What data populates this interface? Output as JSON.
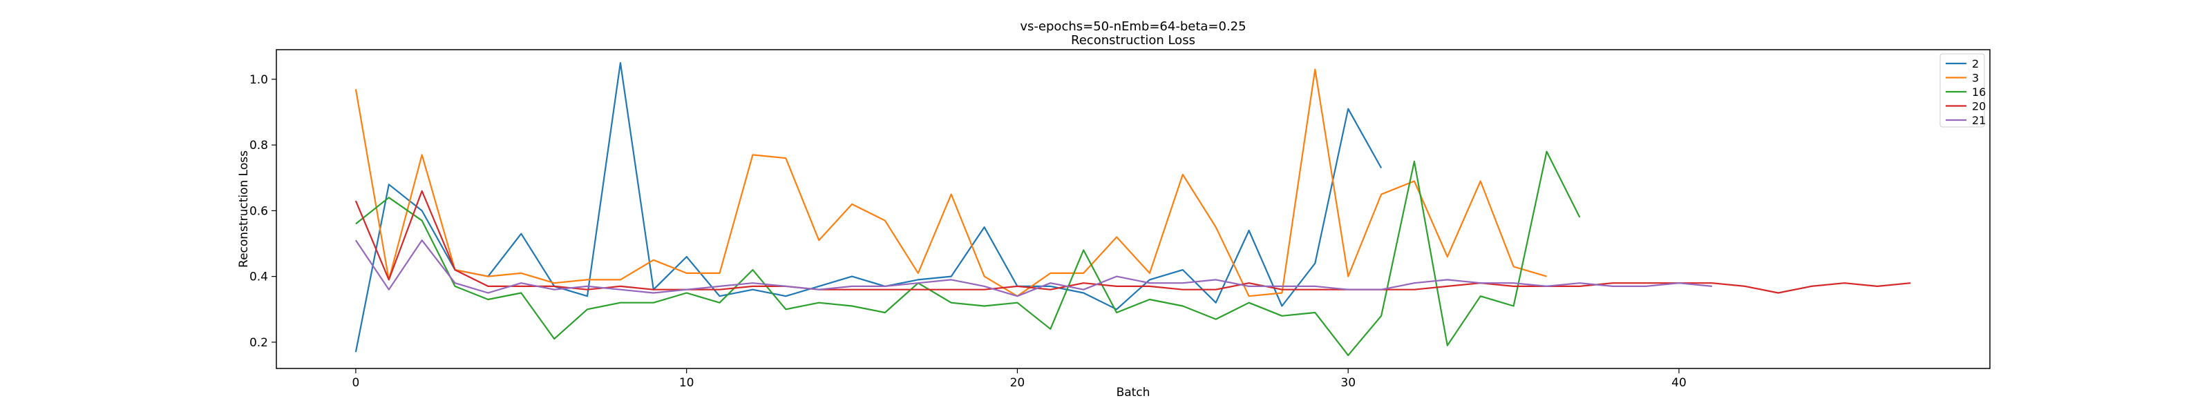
{
  "chart_data": {
    "type": "line",
    "title": "vs-epochs=50-nEmb=64-beta=0.25",
    "subtitle": "Reconstruction Loss",
    "xlabel": "Batch",
    "ylabel": "Reconstruction Loss",
    "xlim": [
      -2.4,
      49.4
    ],
    "ylim": [
      0.12,
      1.09
    ],
    "xticks": [
      0,
      10,
      20,
      30,
      40
    ],
    "yticks": [
      0.2,
      0.4,
      0.6,
      0.8,
      1.0
    ],
    "xtick_labels": [
      "0",
      "10",
      "20",
      "30",
      "40"
    ],
    "ytick_labels": [
      "0.2",
      "0.4",
      "0.6",
      "0.8",
      "1.0"
    ],
    "legend_position": "top-right",
    "series": [
      {
        "name": "2",
        "color": "#1f77b4",
        "values": [
          0.17,
          0.68,
          0.6,
          0.42,
          0.4,
          0.53,
          0.37,
          0.34,
          1.05,
          0.36,
          0.46,
          0.34,
          0.36,
          0.34,
          0.37,
          0.4,
          0.37,
          0.39,
          0.4,
          0.55,
          0.37,
          0.37,
          0.35,
          0.3,
          0.39,
          0.42,
          0.32,
          0.54,
          0.31,
          0.44,
          0.91,
          0.73
        ]
      },
      {
        "name": "3",
        "color": "#ff7f0e",
        "values": [
          0.97,
          0.39,
          0.77,
          0.42,
          0.4,
          0.41,
          0.38,
          0.39,
          0.39,
          0.45,
          0.41,
          0.41,
          0.77,
          0.76,
          0.51,
          0.62,
          0.57,
          0.41,
          0.65,
          0.4,
          0.34,
          0.41,
          0.41,
          0.52,
          0.41,
          0.71,
          0.55,
          0.34,
          0.35,
          1.03,
          0.4,
          0.65,
          0.69,
          0.46,
          0.69,
          0.43,
          0.4
        ]
      },
      {
        "name": "16",
        "color": "#2ca02c",
        "values": [
          0.56,
          0.64,
          0.57,
          0.37,
          0.33,
          0.35,
          0.21,
          0.3,
          0.32,
          0.32,
          0.35,
          0.32,
          0.42,
          0.3,
          0.32,
          0.31,
          0.29,
          0.38,
          0.32,
          0.31,
          0.32,
          0.24,
          0.48,
          0.29,
          0.33,
          0.31,
          0.27,
          0.32,
          0.28,
          0.29,
          0.16,
          0.28,
          0.75,
          0.19,
          0.34,
          0.31,
          0.78,
          0.58
        ]
      },
      {
        "name": "20",
        "color": "#d62728",
        "values": [
          0.63,
          0.39,
          0.66,
          0.42,
          0.37,
          0.37,
          0.37,
          0.36,
          0.37,
          0.36,
          0.36,
          0.36,
          0.37,
          0.37,
          0.36,
          0.36,
          0.36,
          0.36,
          0.36,
          0.36,
          0.37,
          0.36,
          0.38,
          0.37,
          0.37,
          0.36,
          0.36,
          0.38,
          0.36,
          0.36,
          0.36,
          0.36,
          0.36,
          0.37,
          0.38,
          0.37,
          0.37,
          0.37,
          0.38,
          0.38,
          0.38,
          0.38,
          0.37,
          0.35,
          0.37,
          0.38,
          0.37,
          0.38
        ]
      },
      {
        "name": "21",
        "color": "#9467bd",
        "values": [
          0.51,
          0.36,
          0.51,
          0.38,
          0.35,
          0.38,
          0.36,
          0.37,
          0.36,
          0.35,
          0.36,
          0.37,
          0.38,
          0.37,
          0.36,
          0.37,
          0.37,
          0.38,
          0.39,
          0.37,
          0.34,
          0.38,
          0.36,
          0.4,
          0.38,
          0.38,
          0.39,
          0.37,
          0.37,
          0.37,
          0.36,
          0.36,
          0.38,
          0.39,
          0.38,
          0.38,
          0.37,
          0.38,
          0.37,
          0.37,
          0.38,
          0.37
        ]
      }
    ]
  }
}
